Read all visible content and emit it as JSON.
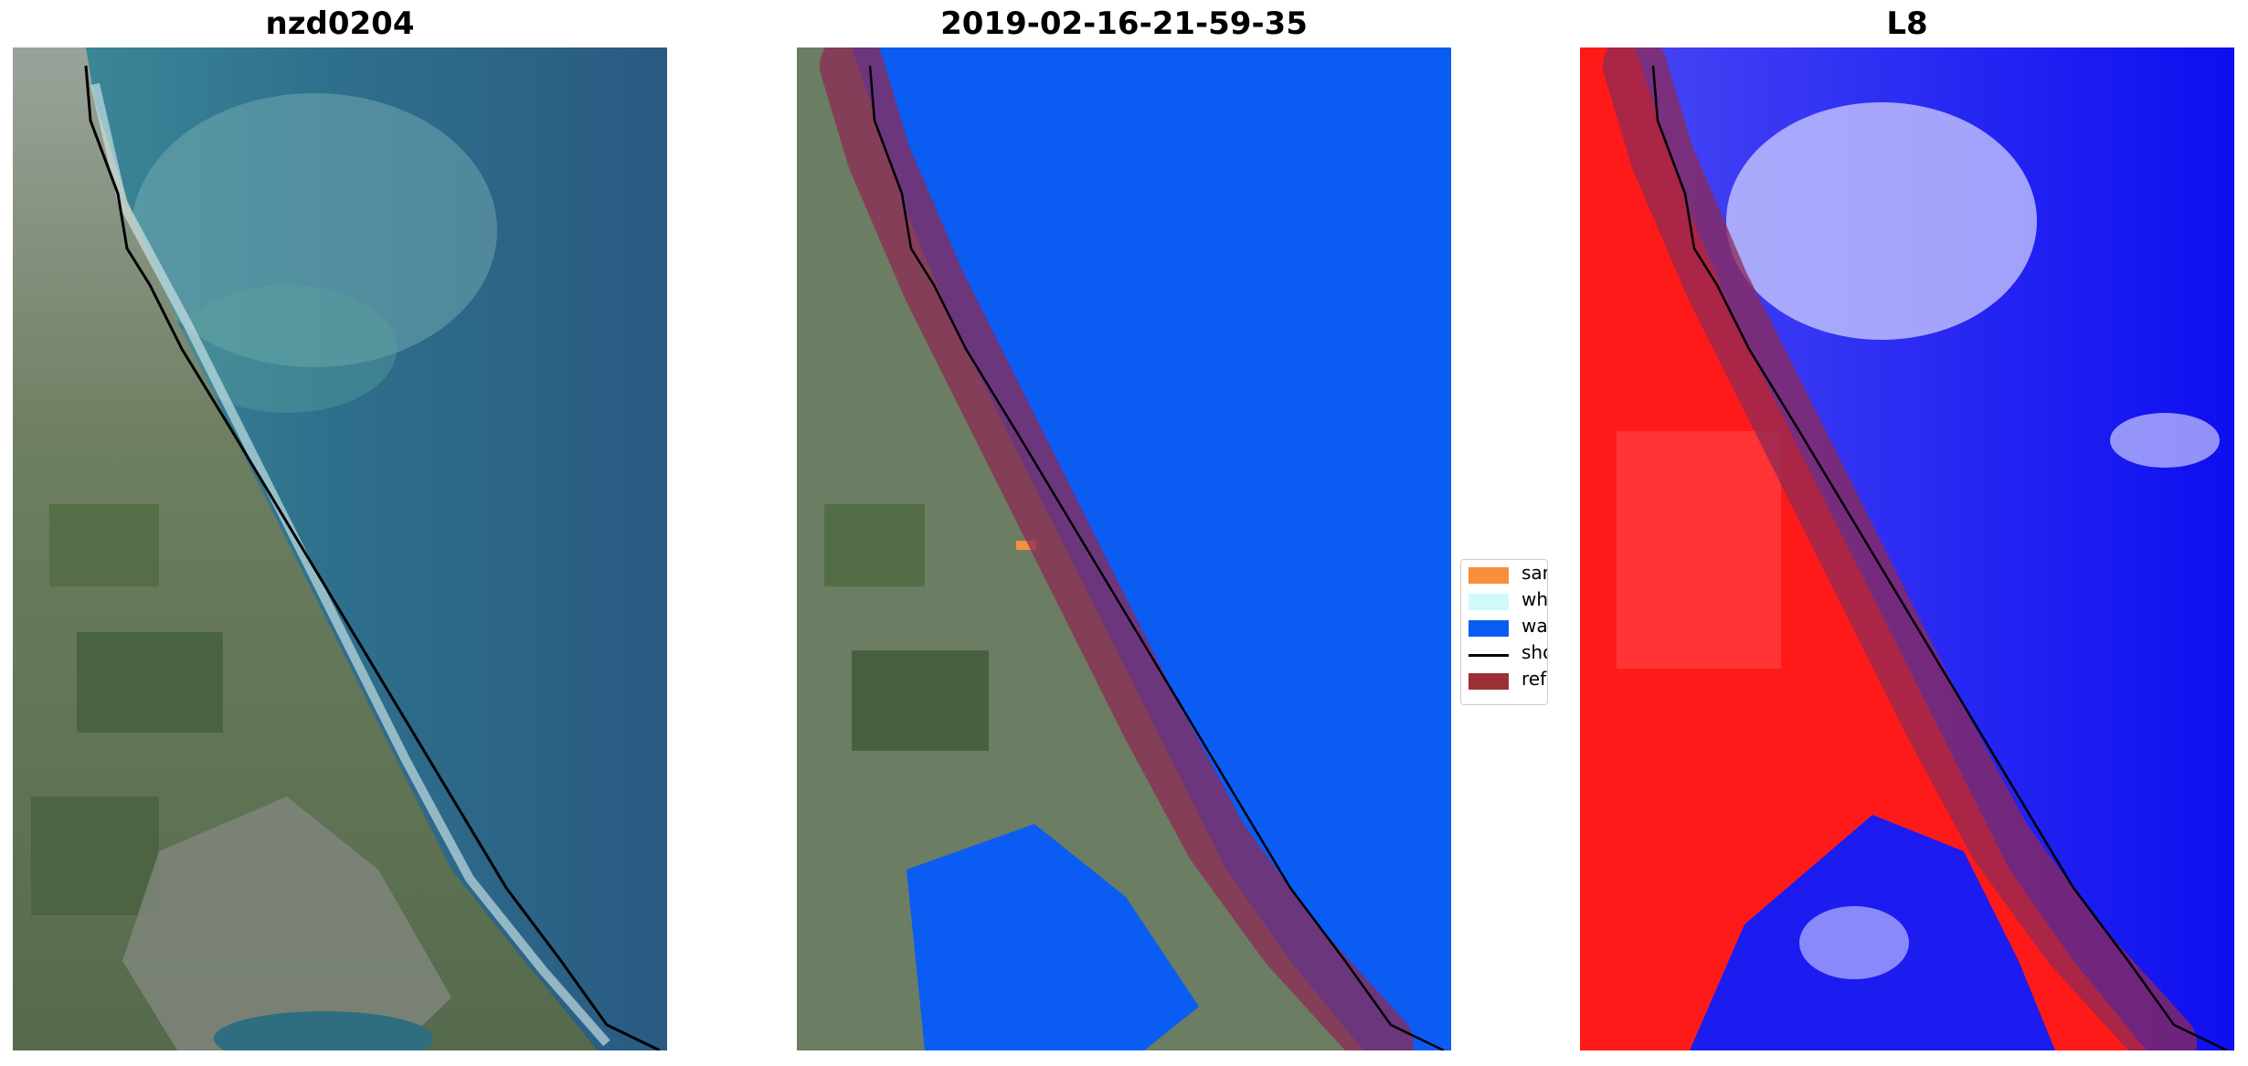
{
  "panels": [
    {
      "title": "nzd0204"
    },
    {
      "title": "2019-02-16-21-59-35"
    },
    {
      "title": "L8"
    }
  ],
  "legend": {
    "items": [
      {
        "label": "sand",
        "color": "#f78f3c",
        "kind": "patch"
      },
      {
        "label": "whitewater",
        "color": "#cff9fb",
        "kind": "patch"
      },
      {
        "label": "water",
        "color": "#0a5cf2",
        "kind": "patch"
      },
      {
        "label": "shoreline",
        "color": "#000000",
        "kind": "line"
      },
      {
        "label": "reference shoreline buffer",
        "color": "#9c3036",
        "kind": "patch"
      }
    ]
  },
  "colors": {
    "ocean": "#2d6a8c",
    "ocean_shallow": "#3f8c9a",
    "land": "#6b7d5e",
    "water_class": "#0a5cf2",
    "buffer": "#8e2a55",
    "index_land": "#ff1a1a",
    "index_water": "#1010f0"
  }
}
